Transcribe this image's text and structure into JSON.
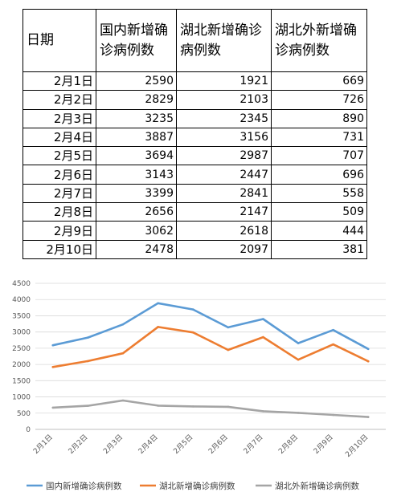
{
  "table": {
    "headers": [
      "日期",
      "国内新增确诊病例数",
      "湖北新增确诊病例数",
      "湖北外新增确诊病例数"
    ],
    "rows": [
      [
        "2月1日",
        "2590",
        "1921",
        "669"
      ],
      [
        "2月2日",
        "2829",
        "2103",
        "726"
      ],
      [
        "2月3日",
        "3235",
        "2345",
        "890"
      ],
      [
        "2月4日",
        "3887",
        "3156",
        "731"
      ],
      [
        "2月5日",
        "3694",
        "2987",
        "707"
      ],
      [
        "2月6日",
        "3143",
        "2447",
        "696"
      ],
      [
        "2月7日",
        "3399",
        "2841",
        "558"
      ],
      [
        "2月8日",
        "2656",
        "2147",
        "509"
      ],
      [
        "2月9日",
        "3062",
        "2618",
        "444"
      ],
      [
        "2月10日",
        "2478",
        "2097",
        "381"
      ]
    ]
  },
  "chart_data": {
    "type": "line",
    "categories": [
      "2月1日",
      "2月2日",
      "2月3日",
      "2月4日",
      "2月5日",
      "2月6日",
      "2月7日",
      "2月8日",
      "2月9日",
      "2月10日"
    ],
    "series": [
      {
        "name": "国内新增确诊病例数",
        "color": "#5B9BD5",
        "values": [
          2590,
          2829,
          3235,
          3887,
          3694,
          3143,
          3399,
          2656,
          3062,
          2478
        ]
      },
      {
        "name": "湖北新增确诊病例数",
        "color": "#ED7D31",
        "values": [
          1921,
          2103,
          2345,
          3156,
          2987,
          2447,
          2841,
          2147,
          2618,
          2097
        ]
      },
      {
        "name": "湖北外新增确诊病例数",
        "color": "#A5A5A5",
        "values": [
          669,
          726,
          890,
          731,
          707,
          696,
          558,
          509,
          444,
          381
        ]
      }
    ],
    "yticks": [
      "0",
      "500",
      "1000",
      "1500",
      "2000",
      "2500",
      "3000",
      "3500",
      "4000",
      "4500"
    ],
    "ylim": [
      0,
      4500
    ],
    "grid": true,
    "legend": "bottom"
  }
}
